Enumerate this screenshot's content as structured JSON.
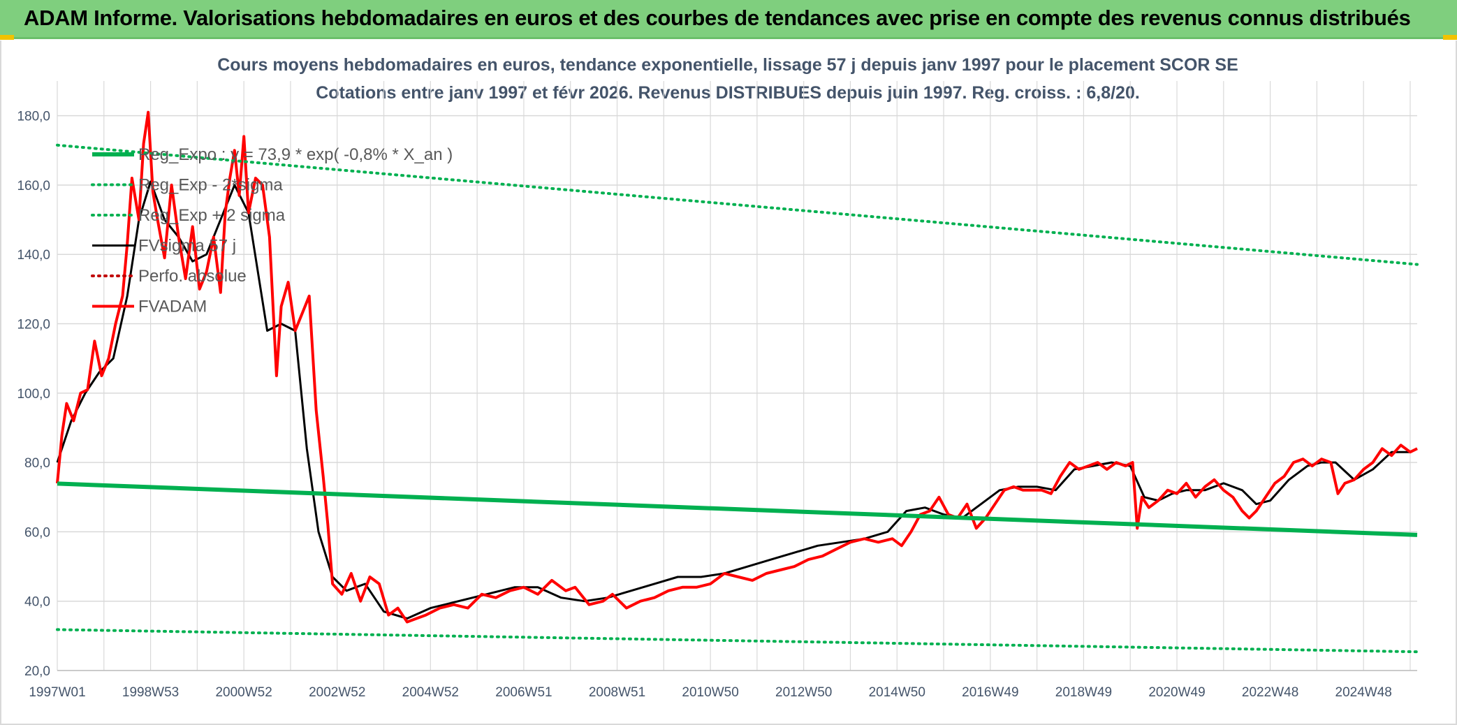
{
  "page": {
    "banner_title": "ADAM Informe. Valorisations hebdomadaires en euros et des courbes de tendances avec prise en compte des revenus connus distribués"
  },
  "colors": {
    "banner": "#7fcf7e",
    "green": "#00b050",
    "red": "#ff0000",
    "black": "#000000",
    "grid": "#d9d9d9",
    "axis_text": "#44546a"
  },
  "chart_data": {
    "type": "line",
    "title": "Cours moyens hebdomadaires en euros, tendance exponentielle, lissage 57 j depuis janv 1997 pour le placement SCOR SE",
    "subtitle": "Cotations entre janv 1997 et févr 2026. Revenus DISTRIBUES depuis juin 1997. Reg. croiss. : 6,8/20.",
    "xlabel": "",
    "ylabel": "",
    "xlim": [
      1997.0,
      2026.15
    ],
    "ylim": [
      20,
      190
    ],
    "yticks": [
      "20,0",
      "40,0",
      "60,0",
      "80,0",
      "100,0",
      "120,0",
      "140,0",
      "160,0",
      "180,0"
    ],
    "ytick_values": [
      20,
      40,
      60,
      80,
      100,
      120,
      140,
      160,
      180
    ],
    "xtick_labels": [
      "1997W01",
      "1998W53",
      "2000W52",
      "2002W52",
      "2004W52",
      "2006W51",
      "2008W51",
      "2010W50",
      "2012W50",
      "2014W50",
      "2016W49",
      "2018W49",
      "2020W49",
      "2022W48",
      "2024W48"
    ],
    "xtick_positions": [
      1997.0,
      1999.0,
      2001.0,
      2003.0,
      2005.0,
      2007.0,
      2009.0,
      2011.0,
      2013.0,
      2015.0,
      2017.0,
      2019.0,
      2021.0,
      2023.0,
      2025.0
    ],
    "grid": true,
    "legend_position": "top-left",
    "legend": [
      "Reg_Expo : y = 73,9 * exp( -0,8% *  X_an )",
      "Reg_Exp - 2*sigma",
      "Reg_Exp + 2 sigma",
      "FVsigma 57 j",
      "Perfo. absolue",
      "FVADAM"
    ],
    "series": [
      {
        "name": "Reg_Expo : y = 73,9 * exp( -0,8% *  X_an )",
        "style": "solid-thick",
        "color": "#00b050",
        "x": [
          1997.0,
          2026.15
        ],
        "values": [
          73.9,
          59.1
        ]
      },
      {
        "name": "Reg_Exp - 2*sigma",
        "style": "dotted",
        "color": "#00b050",
        "x": [
          1997.0,
          2026.15
        ],
        "values": [
          31.8,
          25.4
        ]
      },
      {
        "name": "Reg_Exp + 2 sigma",
        "style": "dotted",
        "color": "#00b050",
        "x": [
          1997.0,
          2026.15
        ],
        "values": [
          171.5,
          137.1
        ]
      },
      {
        "name": "FVsigma 57 j",
        "style": "solid",
        "color": "#000000",
        "x": [
          1997.0,
          1997.3,
          1997.6,
          1997.9,
          1998.2,
          1998.5,
          1998.75,
          1999.0,
          1999.3,
          1999.6,
          1999.9,
          2000.2,
          2000.5,
          2000.8,
          2001.1,
          2001.3,
          2001.5,
          2001.8,
          2002.1,
          2002.35,
          2002.6,
          2002.9,
          2003.2,
          2003.6,
          2004.0,
          2004.5,
          2005.0,
          2005.6,
          2006.2,
          2006.8,
          2007.3,
          2007.8,
          2008.3,
          2008.8,
          2009.3,
          2009.8,
          2010.3,
          2010.8,
          2011.3,
          2011.8,
          2012.3,
          2012.8,
          2013.3,
          2013.8,
          2014.3,
          2014.8,
          2015.2,
          2015.6,
          2016.0,
          2016.4,
          2016.8,
          2017.2,
          2017.6,
          2018.0,
          2018.4,
          2018.8,
          2019.2,
          2019.6,
          2020.0,
          2020.3,
          2020.6,
          2020.9,
          2021.2,
          2021.6,
          2022.0,
          2022.4,
          2022.7,
          2023.0,
          2023.4,
          2023.8,
          2024.1,
          2024.4,
          2024.8,
          2025.2,
          2025.6,
          2026.0,
          2026.15
        ],
        "values": [
          80.0,
          92.0,
          100.0,
          106.0,
          110.0,
          128.0,
          150.0,
          161.0,
          150.0,
          145.0,
          138.0,
          140.0,
          150.0,
          160.0,
          152.0,
          135.0,
          118.0,
          120.0,
          118.0,
          84.0,
          60.0,
          47.0,
          43.0,
          45.0,
          37.0,
          35.0,
          38.0,
          40.0,
          42.0,
          44.0,
          44.0,
          41.0,
          40.0,
          41.0,
          43.0,
          45.0,
          47.0,
          47.0,
          48.0,
          50.0,
          52.0,
          54.0,
          56.0,
          57.0,
          58.0,
          60.0,
          66.0,
          67.0,
          65.0,
          64.0,
          68.0,
          72.0,
          73.0,
          73.0,
          72.0,
          78.0,
          79.0,
          80.0,
          79.0,
          70.0,
          69.0,
          71.0,
          72.0,
          72.0,
          74.0,
          72.0,
          68.0,
          69.0,
          75.0,
          79.0,
          80.0,
          80.0,
          75.0,
          78.0,
          83.0,
          83.0,
          84.0
        ]
      },
      {
        "name": "Perfo. absolue",
        "style": "dotted",
        "color": "#c00000",
        "x": [],
        "values": []
      },
      {
        "name": "FVADAM",
        "style": "solid-thick",
        "color": "#ff0000",
        "x": [
          1997.0,
          1997.1,
          1997.2,
          1997.35,
          1997.5,
          1997.65,
          1997.8,
          1997.95,
          1998.1,
          1998.25,
          1998.4,
          1998.5,
          1998.6,
          1998.75,
          1998.85,
          1998.95,
          1999.05,
          1999.15,
          1999.3,
          1999.45,
          1999.6,
          1999.75,
          1999.9,
          2000.05,
          2000.2,
          2000.35,
          2000.5,
          2000.6,
          2000.7,
          2000.8,
          2000.9,
          2001.0,
          2001.1,
          2001.25,
          2001.4,
          2001.55,
          2001.7,
          2001.8,
          2001.95,
          2002.1,
          2002.25,
          2002.4,
          2002.55,
          2002.7,
          2002.8,
          2002.9,
          2003.1,
          2003.3,
          2003.5,
          2003.7,
          2003.9,
          2004.1,
          2004.3,
          2004.5,
          2004.7,
          2004.9,
          2005.2,
          2005.5,
          2005.8,
          2006.1,
          2006.4,
          2006.7,
          2007.0,
          2007.3,
          2007.6,
          2007.9,
          2008.1,
          2008.4,
          2008.7,
          2008.9,
          2009.2,
          2009.5,
          2009.8,
          2010.1,
          2010.4,
          2010.7,
          2011.0,
          2011.3,
          2011.6,
          2011.9,
          2012.2,
          2012.5,
          2012.8,
          2013.1,
          2013.4,
          2013.7,
          2014.0,
          2014.3,
          2014.6,
          2014.9,
          2015.1,
          2015.3,
          2015.5,
          2015.7,
          2015.9,
          2016.1,
          2016.3,
          2016.5,
          2016.7,
          2016.9,
          2017.1,
          2017.3,
          2017.5,
          2017.7,
          2017.9,
          2018.1,
          2018.3,
          2018.5,
          2018.7,
          2018.9,
          2019.1,
          2019.3,
          2019.5,
          2019.7,
          2019.9,
          2020.05,
          2020.15,
          2020.25,
          2020.4,
          2020.6,
          2020.8,
          2021.0,
          2021.2,
          2021.4,
          2021.6,
          2021.8,
          2022.0,
          2022.2,
          2022.4,
          2022.55,
          2022.7,
          2022.9,
          2023.1,
          2023.3,
          2023.5,
          2023.7,
          2023.9,
          2024.1,
          2024.3,
          2024.45,
          2024.6,
          2024.8,
          2025.0,
          2025.2,
          2025.4,
          2025.6,
          2025.8,
          2026.0,
          2026.15
        ],
        "values": [
          74.0,
          88.0,
          97.0,
          92.0,
          100.0,
          101.0,
          115.0,
          105.0,
          110.0,
          120.0,
          128.0,
          143.0,
          162.0,
          150.0,
          172.0,
          181.0,
          158.0,
          150.0,
          139.0,
          160.0,
          145.0,
          133.0,
          148.0,
          130.0,
          135.0,
          145.0,
          129.0,
          152.0,
          162.0,
          170.0,
          157.0,
          174.0,
          152.0,
          162.0,
          160.0,
          145.0,
          105.0,
          125.0,
          132.0,
          118.0,
          123.0,
          128.0,
          95.0,
          76.0,
          62.0,
          45.0,
          42.0,
          48.0,
          40.0,
          47.0,
          45.0,
          36.0,
          38.0,
          34.0,
          35.0,
          36.0,
          38.0,
          39.0,
          38.0,
          42.0,
          41.0,
          43.0,
          44.0,
          42.0,
          46.0,
          43.0,
          44.0,
          39.0,
          40.0,
          42.0,
          38.0,
          40.0,
          41.0,
          43.0,
          44.0,
          44.0,
          45.0,
          48.0,
          47.0,
          46.0,
          48.0,
          49.0,
          50.0,
          52.0,
          53.0,
          55.0,
          57.0,
          58.0,
          57.0,
          58.0,
          56.0,
          60.0,
          65.0,
          66.0,
          70.0,
          65.0,
          64.0,
          68.0,
          61.0,
          64.0,
          68.0,
          72.0,
          73.0,
          72.0,
          72.0,
          72.0,
          71.0,
          76.0,
          80.0,
          78.0,
          79.0,
          80.0,
          78.0,
          80.0,
          79.0,
          80.0,
          61.0,
          70.0,
          67.0,
          69.0,
          72.0,
          71.0,
          74.0,
          70.0,
          73.0,
          75.0,
          72.0,
          70.0,
          66.0,
          64.0,
          66.0,
          70.0,
          74.0,
          76.0,
          80.0,
          81.0,
          79.0,
          81.0,
          80.0,
          71.0,
          74.0,
          75.0,
          78.0,
          80.0,
          84.0,
          82.0,
          85.0,
          83.0,
          84.0
        ]
      }
    ]
  }
}
